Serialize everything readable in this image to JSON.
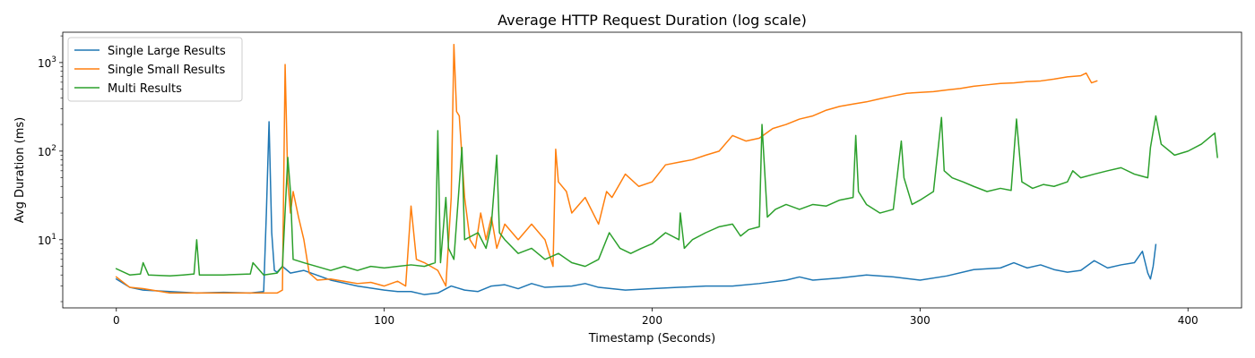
{
  "chart_data": {
    "type": "line",
    "title": "Average HTTP Request Duration (log scale)",
    "xlabel": "Timestamp (Seconds)",
    "ylabel": "Avg Duration (ms)",
    "xlim": [
      -20,
      420
    ],
    "ylim": [
      1.7,
      2200
    ],
    "yscale": "log",
    "x_ticks": [
      0,
      100,
      200,
      300,
      400
    ],
    "y_ticks": [
      {
        "value": 10,
        "base": "10",
        "exp": "1"
      },
      {
        "value": 100,
        "base": "10",
        "exp": "2"
      },
      {
        "value": 1000,
        "base": "10",
        "exp": "3"
      }
    ],
    "grid": false,
    "legend_position": "top-left",
    "series": [
      {
        "name": "Single Large Results",
        "color": "#1f77b4",
        "points": [
          [
            0,
            3.6
          ],
          [
            5,
            2.9
          ],
          [
            10,
            2.7
          ],
          [
            20,
            2.6
          ],
          [
            30,
            2.5
          ],
          [
            40,
            2.55
          ],
          [
            50,
            2.5
          ],
          [
            55,
            2.6
          ],
          [
            56,
            20
          ],
          [
            57,
            215
          ],
          [
            58,
            12
          ],
          [
            59,
            4.5
          ],
          [
            60,
            4.3
          ],
          [
            62,
            5
          ],
          [
            65,
            4.2
          ],
          [
            70,
            4.5
          ],
          [
            80,
            3.5
          ],
          [
            90,
            3.0
          ],
          [
            100,
            2.7
          ],
          [
            105,
            2.6
          ],
          [
            110,
            2.6
          ],
          [
            115,
            2.4
          ],
          [
            120,
            2.5
          ],
          [
            125,
            3.0
          ],
          [
            130,
            2.7
          ],
          [
            135,
            2.6
          ],
          [
            140,
            3.0
          ],
          [
            145,
            3.1
          ],
          [
            150,
            2.8
          ],
          [
            155,
            3.2
          ],
          [
            160,
            2.9
          ],
          [
            170,
            3.0
          ],
          [
            175,
            3.2
          ],
          [
            180,
            2.9
          ],
          [
            190,
            2.7
          ],
          [
            200,
            2.8
          ],
          [
            210,
            2.9
          ],
          [
            220,
            3.0
          ],
          [
            230,
            3.0
          ],
          [
            240,
            3.2
          ],
          [
            250,
            3.5
          ],
          [
            255,
            3.8
          ],
          [
            260,
            3.5
          ],
          [
            270,
            3.7
          ],
          [
            280,
            4.0
          ],
          [
            290,
            3.8
          ],
          [
            300,
            3.5
          ],
          [
            310,
            3.9
          ],
          [
            320,
            4.6
          ],
          [
            330,
            4.8
          ],
          [
            335,
            5.5
          ],
          [
            340,
            4.8
          ],
          [
            345,
            5.2
          ],
          [
            350,
            4.6
          ],
          [
            355,
            4.3
          ],
          [
            360,
            4.5
          ],
          [
            365,
            5.8
          ],
          [
            370,
            4.8
          ],
          [
            375,
            5.2
          ],
          [
            380,
            5.5
          ],
          [
            383,
            7.4
          ],
          [
            385,
            4.2
          ],
          [
            386,
            3.6
          ],
          [
            387,
            5.0
          ],
          [
            388,
            8.8
          ]
        ]
      },
      {
        "name": "Single Small Results",
        "color": "#ff7f0e",
        "points": [
          [
            0,
            3.8
          ],
          [
            5,
            2.9
          ],
          [
            10,
            2.8
          ],
          [
            20,
            2.5
          ],
          [
            30,
            2.5
          ],
          [
            40,
            2.5
          ],
          [
            50,
            2.5
          ],
          [
            60,
            2.5
          ],
          [
            62,
            2.7
          ],
          [
            63,
            950
          ],
          [
            64,
            45
          ],
          [
            65,
            20
          ],
          [
            66,
            35
          ],
          [
            68,
            18
          ],
          [
            70,
            10
          ],
          [
            72,
            4.2
          ],
          [
            75,
            3.5
          ],
          [
            80,
            3.6
          ],
          [
            90,
            3.2
          ],
          [
            95,
            3.3
          ],
          [
            100,
            3.0
          ],
          [
            105,
            3.4
          ],
          [
            108,
            3.0
          ],
          [
            110,
            24
          ],
          [
            112,
            6
          ],
          [
            115,
            5.5
          ],
          [
            120,
            4.5
          ],
          [
            123,
            3.0
          ],
          [
            125,
            30
          ],
          [
            126,
            1600
          ],
          [
            127,
            280
          ],
          [
            128,
            250
          ],
          [
            130,
            30
          ],
          [
            132,
            10
          ],
          [
            134,
            8
          ],
          [
            136,
            20
          ],
          [
            138,
            10
          ],
          [
            140,
            18
          ],
          [
            142,
            8
          ],
          [
            145,
            15
          ],
          [
            150,
            10
          ],
          [
            155,
            15
          ],
          [
            160,
            10
          ],
          [
            163,
            5
          ],
          [
            164,
            105
          ],
          [
            165,
            45
          ],
          [
            168,
            35
          ],
          [
            170,
            20
          ],
          [
            175,
            30
          ],
          [
            180,
            15
          ],
          [
            183,
            35
          ],
          [
            185,
            30
          ],
          [
            190,
            55
          ],
          [
            195,
            40
          ],
          [
            200,
            45
          ],
          [
            205,
            70
          ],
          [
            210,
            75
          ],
          [
            215,
            80
          ],
          [
            220,
            90
          ],
          [
            225,
            100
          ],
          [
            230,
            150
          ],
          [
            235,
            130
          ],
          [
            240,
            140
          ],
          [
            245,
            180
          ],
          [
            250,
            200
          ],
          [
            255,
            230
          ],
          [
            260,
            250
          ],
          [
            265,
            290
          ],
          [
            270,
            320
          ],
          [
            275,
            340
          ],
          [
            280,
            360
          ],
          [
            285,
            390
          ],
          [
            290,
            420
          ],
          [
            295,
            450
          ],
          [
            300,
            460
          ],
          [
            305,
            470
          ],
          [
            310,
            490
          ],
          [
            315,
            510
          ],
          [
            320,
            540
          ],
          [
            325,
            560
          ],
          [
            330,
            580
          ],
          [
            335,
            590
          ],
          [
            340,
            610
          ],
          [
            345,
            620
          ],
          [
            350,
            650
          ],
          [
            355,
            690
          ],
          [
            360,
            710
          ],
          [
            362,
            760
          ],
          [
            364,
            590
          ],
          [
            366,
            620
          ]
        ]
      },
      {
        "name": "Multi Results",
        "color": "#2ca02c",
        "points": [
          [
            0,
            4.7
          ],
          [
            5,
            4.0
          ],
          [
            9,
            4.1
          ],
          [
            10,
            5.5
          ],
          [
            12,
            4.0
          ],
          [
            20,
            3.9
          ],
          [
            25,
            4.0
          ],
          [
            29,
            4.1
          ],
          [
            30,
            10
          ],
          [
            31,
            4.0
          ],
          [
            40,
            4.0
          ],
          [
            50,
            4.1
          ],
          [
            51,
            5.5
          ],
          [
            55,
            4.0
          ],
          [
            60,
            4.2
          ],
          [
            62,
            5.0
          ],
          [
            64,
            85
          ],
          [
            65,
            35
          ],
          [
            66,
            6
          ],
          [
            70,
            5.5
          ],
          [
            80,
            4.5
          ],
          [
            85,
            5.0
          ],
          [
            90,
            4.5
          ],
          [
            95,
            5.0
          ],
          [
            100,
            4.8
          ],
          [
            105,
            5.0
          ],
          [
            110,
            5.2
          ],
          [
            115,
            5.0
          ],
          [
            119,
            5.5
          ],
          [
            120,
            170
          ],
          [
            121,
            5.5
          ],
          [
            123,
            30
          ],
          [
            124,
            8
          ],
          [
            126,
            6
          ],
          [
            129,
            110
          ],
          [
            130,
            10
          ],
          [
            135,
            12
          ],
          [
            138,
            8
          ],
          [
            140,
            15
          ],
          [
            142,
            90
          ],
          [
            143,
            12
          ],
          [
            145,
            10
          ],
          [
            150,
            7
          ],
          [
            155,
            8
          ],
          [
            160,
            6
          ],
          [
            165,
            7
          ],
          [
            170,
            5.5
          ],
          [
            175,
            5.0
          ],
          [
            180,
            6
          ],
          [
            184,
            12
          ],
          [
            188,
            8
          ],
          [
            192,
            7
          ],
          [
            196,
            8
          ],
          [
            200,
            9
          ],
          [
            205,
            12
          ],
          [
            210,
            10
          ],
          [
            210.5,
            20
          ],
          [
            212,
            8
          ],
          [
            215,
            10
          ],
          [
            220,
            12
          ],
          [
            225,
            14
          ],
          [
            230,
            15
          ],
          [
            233,
            11
          ],
          [
            236,
            13
          ],
          [
            240,
            14
          ],
          [
            241,
            200
          ],
          [
            243,
            18
          ],
          [
            246,
            22
          ],
          [
            250,
            25
          ],
          [
            255,
            22
          ],
          [
            260,
            25
          ],
          [
            265,
            24
          ],
          [
            270,
            28
          ],
          [
            275,
            30
          ],
          [
            276,
            150
          ],
          [
            277,
            35
          ],
          [
            280,
            25
          ],
          [
            285,
            20
          ],
          [
            290,
            22
          ],
          [
            293,
            130
          ],
          [
            294,
            50
          ],
          [
            297,
            25
          ],
          [
            300,
            28
          ],
          [
            305,
            35
          ],
          [
            308,
            240
          ],
          [
            309,
            60
          ],
          [
            312,
            50
          ],
          [
            316,
            45
          ],
          [
            320,
            40
          ],
          [
            325,
            35
          ],
          [
            330,
            38
          ],
          [
            334,
            36
          ],
          [
            336,
            230
          ],
          [
            338,
            45
          ],
          [
            342,
            38
          ],
          [
            346,
            42
          ],
          [
            350,
            40
          ],
          [
            355,
            45
          ],
          [
            357,
            60
          ],
          [
            360,
            50
          ],
          [
            365,
            55
          ],
          [
            370,
            60
          ],
          [
            375,
            65
          ],
          [
            380,
            55
          ],
          [
            385,
            50
          ],
          [
            386,
            110
          ],
          [
            388,
            250
          ],
          [
            390,
            120
          ],
          [
            395,
            90
          ],
          [
            400,
            100
          ],
          [
            405,
            120
          ],
          [
            410,
            160
          ],
          [
            411,
            85
          ]
        ]
      }
    ]
  }
}
